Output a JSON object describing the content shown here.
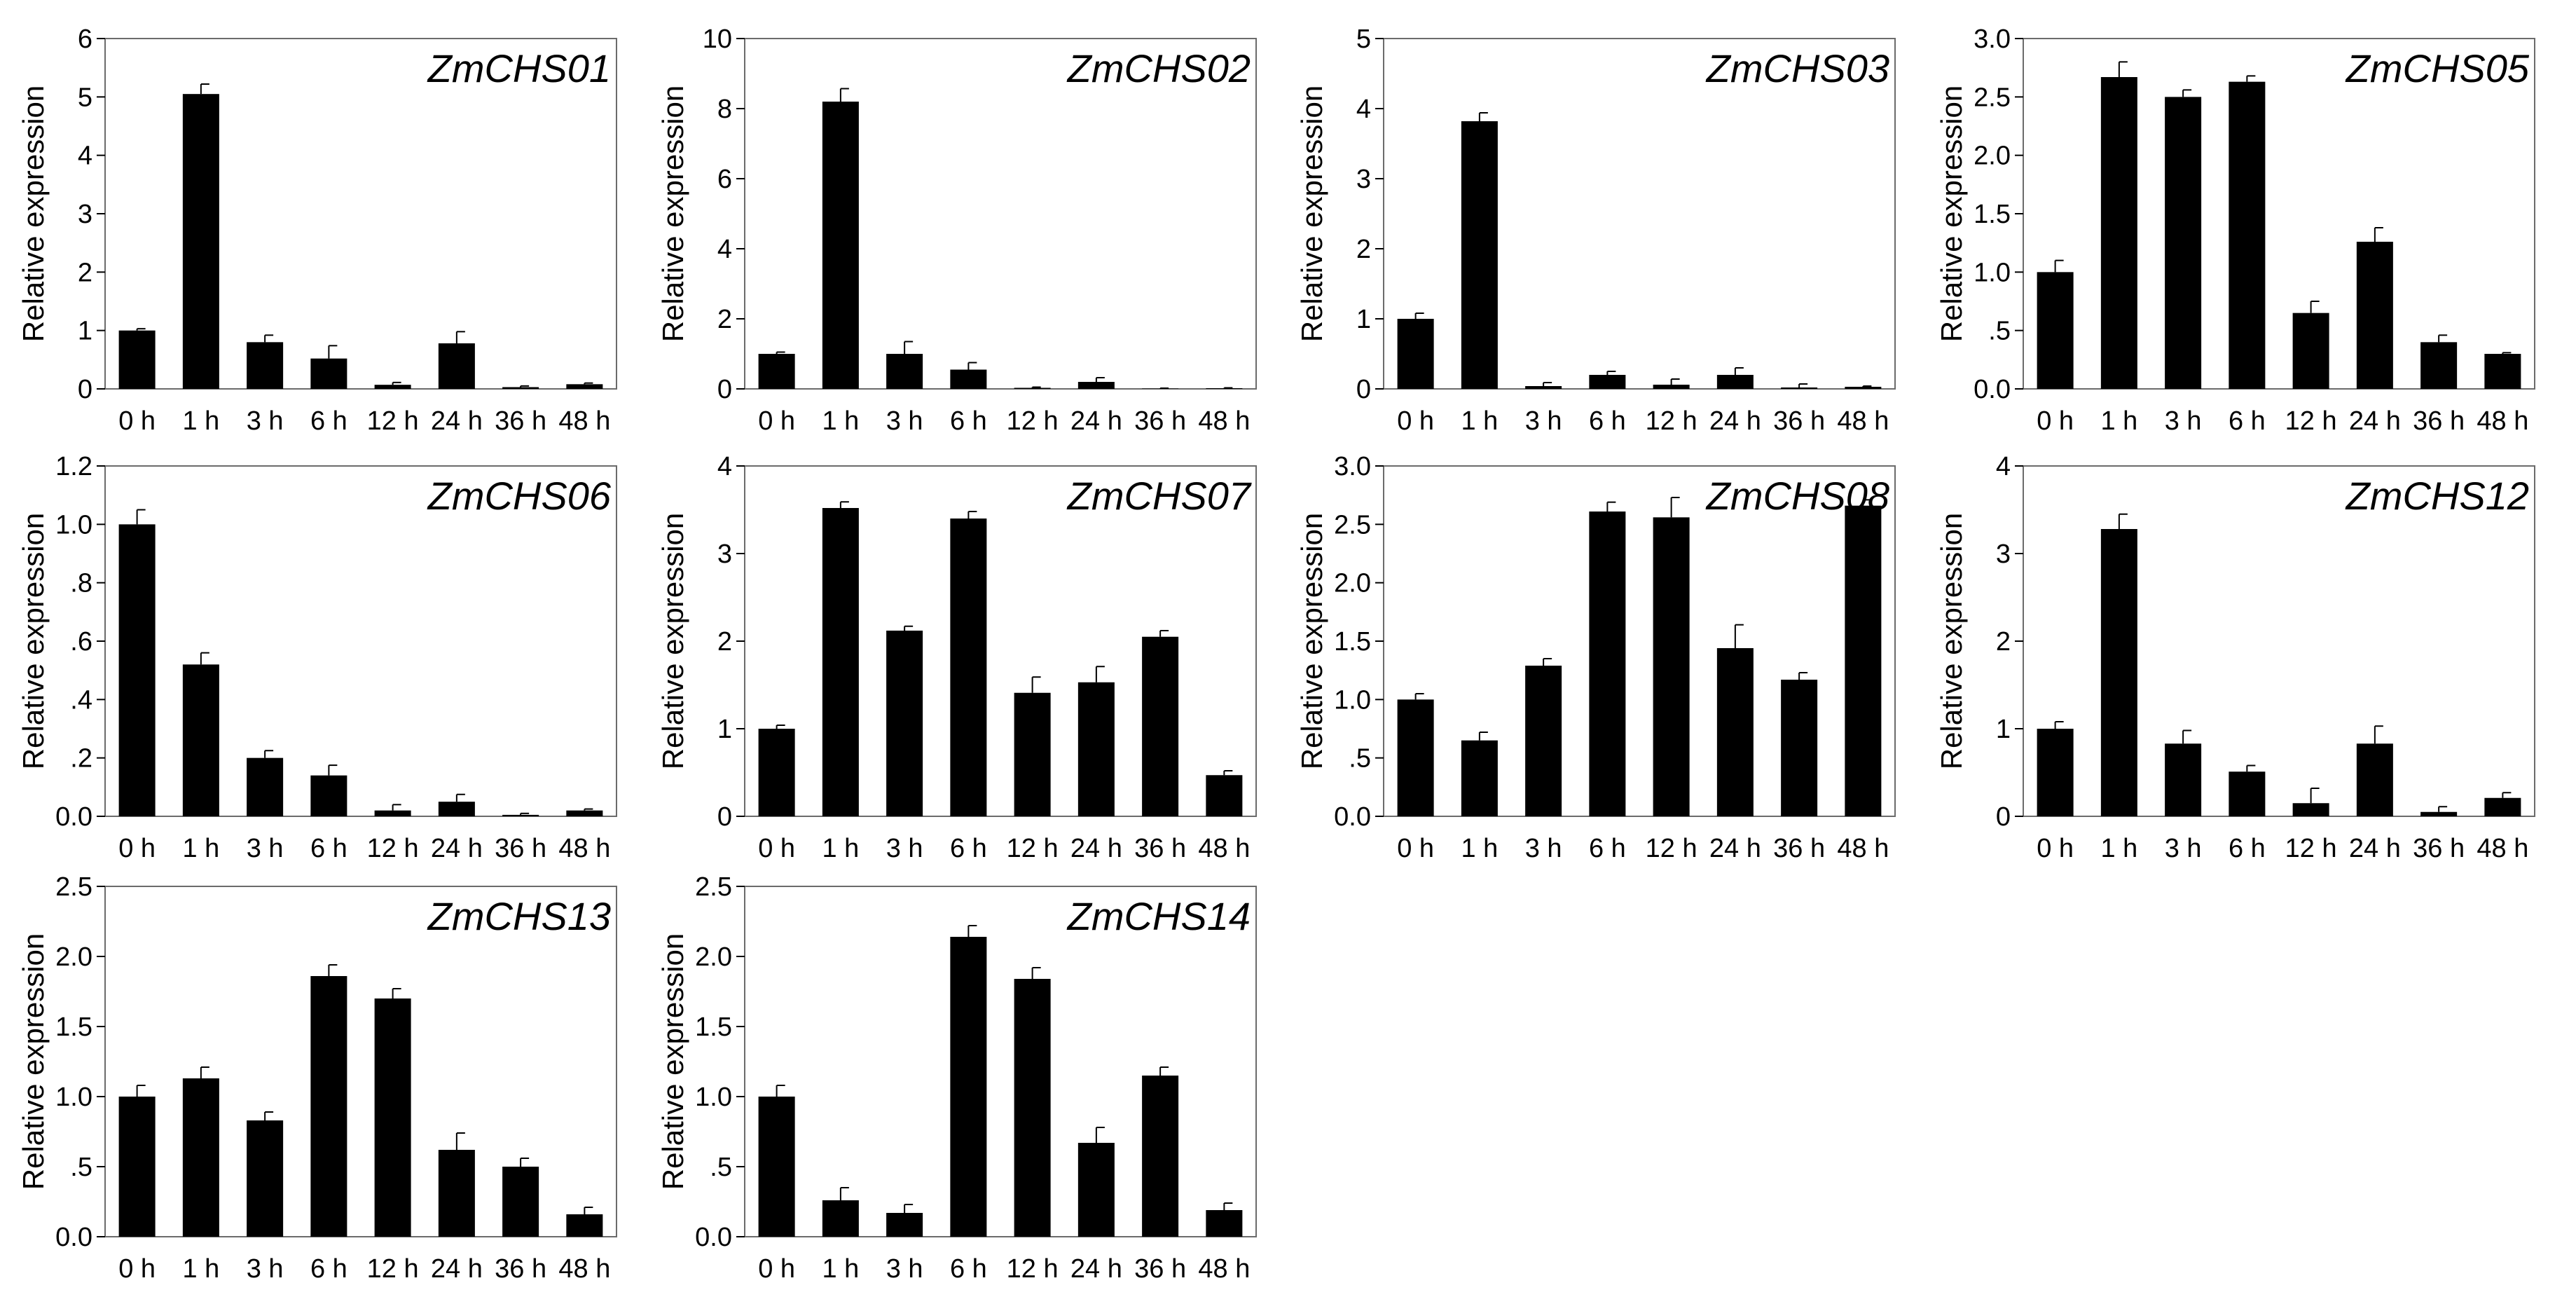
{
  "chart_data": [
    {
      "type": "bar",
      "title": "ZmCHS01",
      "ylabel": "Relative expression",
      "categories": [
        "0 h",
        "1 h",
        "3 h",
        "6 h",
        "12 h",
        "24 h",
        "36 h",
        "48 h"
      ],
      "ylim": [
        0,
        6
      ],
      "yticks": [
        "0",
        "1",
        "2",
        "3",
        "4",
        "5",
        "6"
      ],
      "values": [
        1.0,
        5.05,
        0.8,
        0.52,
        0.07,
        0.78,
        0.03,
        0.08
      ],
      "errors": [
        0.03,
        0.17,
        0.12,
        0.22,
        0.04,
        0.2,
        0.02,
        0.02
      ]
    },
    {
      "type": "bar",
      "title": "ZmCHS02",
      "ylabel": "Relative expression",
      "categories": [
        "0 h",
        "1 h",
        "3 h",
        "6 h",
        "12 h",
        "24 h",
        "36 h",
        "48 h"
      ],
      "ylim": [
        0,
        10
      ],
      "yticks": [
        "0",
        "2",
        "4",
        "6",
        "8",
        "10"
      ],
      "values": [
        1.0,
        8.2,
        1.0,
        0.55,
        0.03,
        0.2,
        0.01,
        0.02
      ],
      "errors": [
        0.05,
        0.37,
        0.35,
        0.2,
        0.02,
        0.12,
        0.01,
        0.01
      ]
    },
    {
      "type": "bar",
      "title": "ZmCHS03",
      "ylabel": "Relative expression",
      "categories": [
        "0 h",
        "1 h",
        "3 h",
        "6 h",
        "12 h",
        "24 h",
        "36 h",
        "48 h"
      ],
      "ylim": [
        0,
        5
      ],
      "yticks": [
        "0",
        "1",
        "2",
        "3",
        "4",
        "5"
      ],
      "values": [
        1.0,
        3.82,
        0.04,
        0.2,
        0.06,
        0.2,
        0.02,
        0.03
      ],
      "errors": [
        0.08,
        0.12,
        0.05,
        0.05,
        0.08,
        0.1,
        0.05,
        0.01
      ]
    },
    {
      "type": "bar",
      "title": "ZmCHS05",
      "ylabel": "Relative expression",
      "categories": [
        "0 h",
        "1 h",
        "3 h",
        "6 h",
        "12 h",
        "24 h",
        "36 h",
        "48 h"
      ],
      "ylim": [
        0,
        3
      ],
      "yticks": [
        "0.0",
        ".5",
        "1.0",
        "1.5",
        "2.0",
        "2.5",
        "3.0"
      ],
      "values": [
        1.0,
        2.67,
        2.5,
        2.63,
        0.65,
        1.26,
        0.4,
        0.3
      ],
      "errors": [
        0.1,
        0.13,
        0.06,
        0.05,
        0.1,
        0.12,
        0.06,
        0.01
      ]
    },
    {
      "type": "bar",
      "title": "ZmCHS06",
      "ylabel": "Relative expression",
      "categories": [
        "0 h",
        "1 h",
        "3 h",
        "6 h",
        "12 h",
        "24 h",
        "36 h",
        "48 h"
      ],
      "ylim": [
        0,
        1.2
      ],
      "yticks": [
        "0.0",
        ".2",
        ".4",
        ".6",
        ".8",
        "1.0",
        "1.2"
      ],
      "values": [
        1.0,
        0.52,
        0.2,
        0.14,
        0.02,
        0.05,
        0.005,
        0.02
      ],
      "errors": [
        0.05,
        0.04,
        0.025,
        0.035,
        0.02,
        0.025,
        0.005,
        0.005
      ]
    },
    {
      "type": "bar",
      "title": "ZmCHS07",
      "ylabel": "Relative expression",
      "categories": [
        "0 h",
        "1 h",
        "3 h",
        "6 h",
        "12 h",
        "24 h",
        "36 h",
        "48 h"
      ],
      "ylim": [
        0,
        4
      ],
      "yticks": [
        "0",
        "1",
        "2",
        "3",
        "4"
      ],
      "values": [
        1.0,
        3.52,
        2.12,
        3.4,
        1.41,
        1.53,
        2.05,
        0.47
      ],
      "errors": [
        0.04,
        0.07,
        0.05,
        0.08,
        0.18,
        0.18,
        0.07,
        0.05
      ]
    },
    {
      "type": "bar",
      "title": "ZmCHS08",
      "ylabel": "Relative expression",
      "categories": [
        "0 h",
        "1 h",
        "3 h",
        "6 h",
        "12 h",
        "24 h",
        "36 h",
        "48 h"
      ],
      "ylim": [
        0,
        3
      ],
      "yticks": [
        "0.0",
        ".5",
        "1.0",
        "1.5",
        "2.0",
        "2.5",
        "3.0"
      ],
      "values": [
        1.0,
        0.65,
        1.29,
        2.61,
        2.56,
        1.44,
        1.17,
        2.66
      ],
      "errors": [
        0.05,
        0.07,
        0.06,
        0.08,
        0.17,
        0.2,
        0.06,
        0.05
      ]
    },
    {
      "type": "bar",
      "title": "ZmCHS12",
      "ylabel": "Relative expression",
      "categories": [
        "0 h",
        "1 h",
        "3 h",
        "6 h",
        "12 h",
        "24 h",
        "36 h",
        "48 h"
      ],
      "ylim": [
        0,
        4
      ],
      "yticks": [
        "0",
        "1",
        "2",
        "3",
        "4"
      ],
      "values": [
        1.0,
        3.28,
        0.83,
        0.51,
        0.15,
        0.83,
        0.05,
        0.21
      ],
      "errors": [
        0.08,
        0.17,
        0.15,
        0.07,
        0.17,
        0.2,
        0.06,
        0.06
      ]
    },
    {
      "type": "bar",
      "title": "ZmCHS13",
      "ylabel": "Relative expression",
      "categories": [
        "0 h",
        "1 h",
        "3 h",
        "6 h",
        "12 h",
        "24 h",
        "36 h",
        "48 h"
      ],
      "ylim": [
        0,
        2.5
      ],
      "yticks": [
        "0.0",
        ".5",
        "1.0",
        "1.5",
        "2.0",
        "2.5"
      ],
      "values": [
        1.0,
        1.13,
        0.83,
        1.86,
        1.7,
        0.62,
        0.5,
        0.16
      ],
      "errors": [
        0.08,
        0.08,
        0.06,
        0.08,
        0.07,
        0.12,
        0.06,
        0.05
      ]
    },
    {
      "type": "bar",
      "title": "ZmCHS14",
      "ylabel": "Relative expression",
      "categories": [
        "0 h",
        "1 h",
        "3 h",
        "6 h",
        "12 h",
        "24 h",
        "36 h",
        "48 h"
      ],
      "ylim": [
        0,
        2.5
      ],
      "yticks": [
        "0.0",
        ".5",
        "1.0",
        "1.5",
        "2.0",
        "2.5"
      ],
      "values": [
        1.0,
        0.26,
        0.17,
        2.14,
        1.84,
        0.67,
        1.15,
        0.19
      ],
      "errors": [
        0.08,
        0.09,
        0.06,
        0.08,
        0.08,
        0.11,
        0.06,
        0.05
      ]
    }
  ]
}
